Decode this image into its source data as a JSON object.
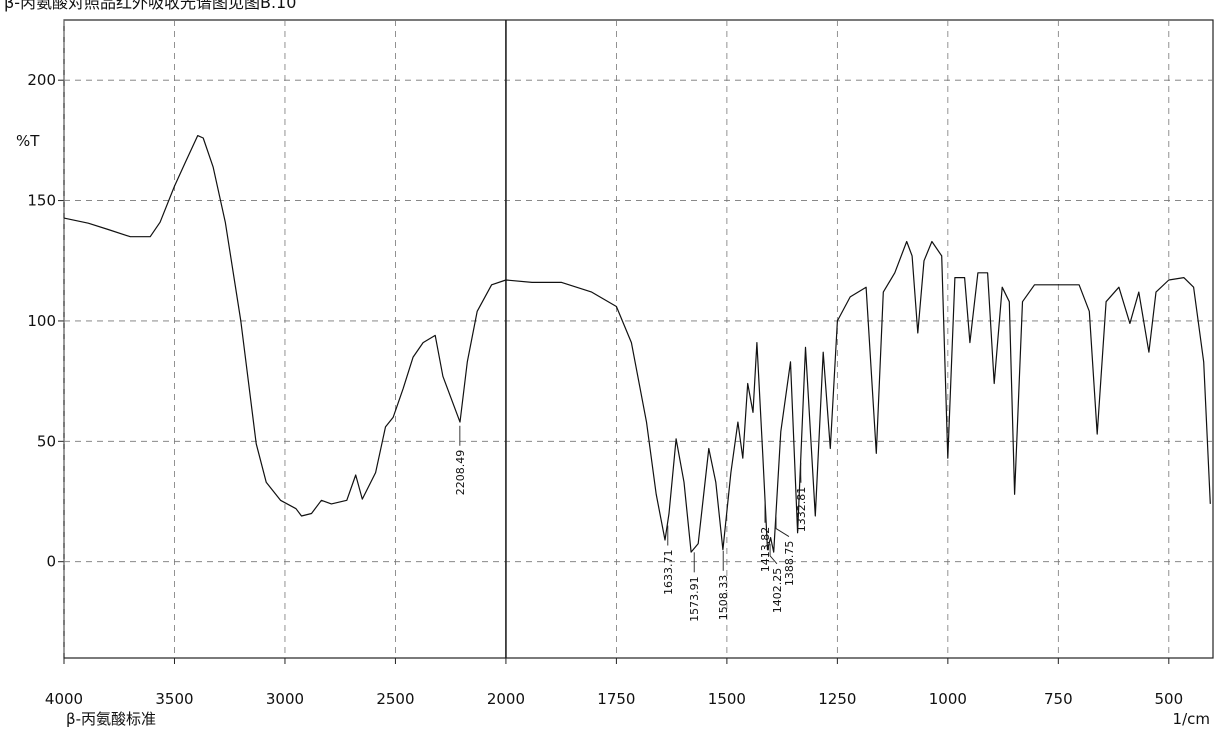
{
  "chart_data": {
    "type": "line",
    "title": "β-丙氨酸对照品红外吸收光谱图见图B.10",
    "y_label": "%T",
    "x_label": "1/cm",
    "sample_label": "β-丙氨酸标准",
    "xlim": [
      4000,
      400
    ],
    "xticks": [
      4000,
      3500,
      3000,
      2500,
      2000,
      1750,
      1500,
      1250,
      1000,
      750,
      500
    ],
    "x_break": 2000,
    "ylim": [
      -40,
      225
    ],
    "yticks": [
      0,
      50,
      100,
      150,
      200
    ],
    "grid": true,
    "series": [
      {
        "name": "β-丙氨酸标准",
        "color": "#111111",
        "x": [
          4000,
          3890,
          3800,
          3700,
          3610,
          3565,
          3500,
          3450,
          3395,
          3370,
          3325,
          3270,
          3200,
          3130,
          3085,
          3020,
          2950,
          2925,
          2880,
          2835,
          2790,
          2720,
          2680,
          2650,
          2590,
          2545,
          2510,
          2465,
          2420,
          2375,
          2320,
          2285,
          2208,
          2175,
          2130,
          2065,
          2000,
          1941,
          1874,
          1806,
          1750,
          1716,
          1682,
          1660,
          1640,
          1631,
          1615,
          1597,
          1581,
          1565,
          1541,
          1525,
          1509,
          1491,
          1475,
          1464,
          1453,
          1441,
          1432,
          1419,
          1408,
          1401,
          1394,
          1378,
          1356,
          1340,
          1322,
          1300,
          1282,
          1266,
          1250,
          1221,
          1185,
          1162,
          1146,
          1120,
          1093,
          1081,
          1068,
          1054,
          1036,
          1014,
          1000,
          984,
          962,
          950,
          932,
          910,
          895,
          877,
          861,
          849,
          831,
          804,
          703,
          680,
          662,
          642,
          613,
          588,
          568,
          545,
          529,
          500,
          466,
          444,
          421,
          406
        ],
        "values": [
          142.7,
          140.6,
          138,
          135,
          135,
          141,
          156,
          166,
          177,
          176,
          164,
          141,
          100,
          49,
          33,
          25.5,
          22,
          19,
          20,
          25.5,
          24,
          25.5,
          36,
          26,
          37,
          56,
          60,
          72,
          85,
          91,
          94,
          77,
          58,
          83,
          104,
          115,
          117,
          116,
          116,
          112,
          106,
          91,
          58,
          28,
          9,
          20,
          51,
          33,
          4,
          7.5,
          47,
          33,
          5,
          37,
          58,
          43,
          74,
          62,
          91,
          45,
          5,
          10,
          4,
          54,
          83,
          12,
          89,
          19,
          87,
          47,
          100,
          110,
          114,
          45,
          112,
          120,
          133,
          127,
          95,
          125,
          133,
          127,
          43,
          118,
          118,
          91,
          120,
          120,
          74,
          114,
          108,
          28,
          108,
          115,
          115,
          104,
          53,
          108,
          114,
          99,
          112,
          87,
          112,
          117,
          118,
          114,
          83,
          24
        ]
      }
    ],
    "peak_labels": [
      2208.49,
      1633.71,
      1573.91,
      1508.33,
      1413.82,
      1402.25,
      1388.75,
      1332.81
    ]
  }
}
